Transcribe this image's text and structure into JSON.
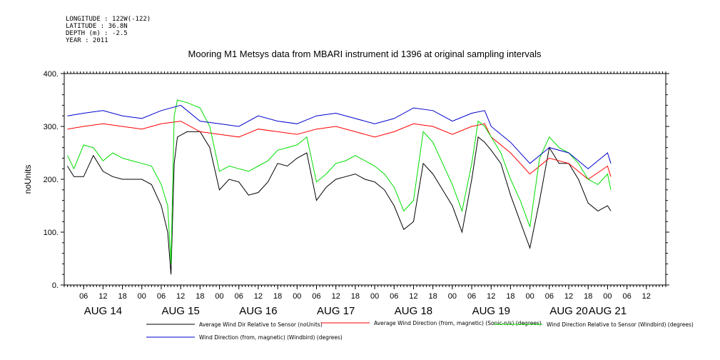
{
  "metadata": {
    "longitude": "LONGITUDE : 122W(-122)",
    "latitude": "LATITUDE : 36.8N",
    "depth": "DEPTH (m) : -2.5",
    "year": "YEAR : 2011"
  },
  "chart_data": {
    "type": "line",
    "title": "Mooring M1 Metsys data from MBARI instrument id 1396 at original sampling intervals",
    "ylabel": "noUnits",
    "xlabel": "",
    "ylim": [
      0,
      400
    ],
    "xlim_hours": [
      0,
      186
    ],
    "yticks": [
      0,
      100,
      200,
      300,
      400
    ],
    "ytick_labels": [
      "0.",
      "100.",
      "200.",
      "300.",
      "400."
    ],
    "hour_ticks": [
      6,
      12,
      18,
      24,
      30,
      36,
      42,
      48,
      54,
      60,
      66,
      72,
      78,
      84,
      90,
      96,
      102,
      108,
      114,
      120,
      126,
      132,
      138,
      144,
      150,
      156,
      162,
      168,
      174,
      180
    ],
    "hour_tick_labels": [
      "06",
      "12",
      "18",
      "00",
      "06",
      "12",
      "18",
      "00",
      "06",
      "12",
      "18",
      "00",
      "06",
      "12",
      "18",
      "00",
      "06",
      "12",
      "18",
      "00",
      "06",
      "12",
      "18",
      "00",
      "06",
      "12",
      "18",
      "00",
      "06",
      "12"
    ],
    "day_labels": [
      {
        "label": "AUG 14",
        "hour": 12
      },
      {
        "label": "AUG 15",
        "hour": 36
      },
      {
        "label": "AUG 16",
        "hour": 60
      },
      {
        "label": "AUG 17",
        "hour": 84
      },
      {
        "label": "AUG 18",
        "hour": 108
      },
      {
        "label": "AUG 19",
        "hour": 132
      },
      {
        "label": "AUG 20",
        "hour": 156
      },
      {
        "label": "AUG 21",
        "hour": 168
      }
    ],
    "series": [
      {
        "name": "Average Wind Dir Relative to Sensor (noUnits)",
        "color": "#000000",
        "x": [
          1,
          3,
          6,
          9,
          12,
          15,
          18,
          21,
          24,
          27,
          30,
          32,
          33,
          34,
          35,
          38,
          42,
          45,
          48,
          51,
          54,
          57,
          60,
          63,
          66,
          69,
          72,
          75,
          78,
          81,
          84,
          87,
          90,
          93,
          96,
          99,
          102,
          105,
          108,
          111,
          114,
          117,
          120,
          123,
          126,
          128,
          130,
          132,
          135,
          138,
          141,
          144,
          147,
          150,
          153,
          156,
          159,
          162,
          165,
          168,
          169
        ],
        "y": [
          225,
          205,
          205,
          245,
          215,
          205,
          200,
          200,
          200,
          190,
          150,
          100,
          20,
          230,
          280,
          290,
          290,
          260,
          180,
          200,
          195,
          170,
          175,
          195,
          230,
          225,
          240,
          250,
          160,
          185,
          200,
          205,
          210,
          200,
          195,
          180,
          150,
          105,
          120,
          230,
          210,
          180,
          150,
          100,
          200,
          280,
          270,
          255,
          230,
          170,
          120,
          70,
          160,
          260,
          230,
          230,
          200,
          155,
          140,
          150,
          140
        ]
      },
      {
        "name": "Average Wind Direction (from, magnetic) (Sonic-n/s) (degrees)",
        "color": "#ff0000",
        "x": [
          1,
          6,
          12,
          18,
          24,
          30,
          36,
          42,
          48,
          54,
          60,
          66,
          72,
          78,
          84,
          90,
          96,
          102,
          108,
          114,
          120,
          126,
          130,
          132,
          138,
          144,
          150,
          156,
          162,
          168,
          169
        ],
        "y": [
          295,
          300,
          305,
          300,
          295,
          305,
          310,
          290,
          285,
          280,
          295,
          290,
          285,
          295,
          300,
          290,
          280,
          290,
          305,
          300,
          285,
          300,
          305,
          280,
          250,
          210,
          240,
          230,
          200,
          225,
          205
        ]
      },
      {
        "name": "Wind Direction Relative to Sensor (Windbird) (degrees)",
        "color": "#00dd00",
        "x": [
          1,
          3,
          6,
          9,
          12,
          15,
          18,
          21,
          24,
          27,
          30,
          32,
          33,
          34,
          35,
          38,
          42,
          45,
          48,
          51,
          54,
          57,
          60,
          63,
          66,
          69,
          72,
          75,
          78,
          81,
          84,
          87,
          90,
          93,
          96,
          99,
          102,
          105,
          108,
          111,
          114,
          117,
          120,
          123,
          126,
          128,
          130,
          132,
          135,
          138,
          141,
          144,
          147,
          150,
          153,
          156,
          159,
          162,
          165,
          168,
          169
        ],
        "y": [
          245,
          220,
          265,
          260,
          235,
          250,
          240,
          235,
          230,
          225,
          190,
          150,
          40,
          320,
          350,
          345,
          335,
          300,
          215,
          225,
          220,
          215,
          225,
          235,
          255,
          260,
          265,
          280,
          195,
          210,
          230,
          235,
          245,
          235,
          225,
          210,
          185,
          140,
          160,
          290,
          270,
          230,
          190,
          140,
          230,
          310,
          300,
          280,
          250,
          200,
          160,
          110,
          240,
          280,
          260,
          250,
          230,
          200,
          190,
          210,
          180
        ]
      },
      {
        "name": "Wind Direction (from, magnetic) (Windbird) (degrees)",
        "color": "#0000cc",
        "x": [
          1,
          6,
          12,
          18,
          24,
          30,
          36,
          42,
          48,
          54,
          60,
          66,
          72,
          78,
          84,
          90,
          96,
          102,
          108,
          114,
          120,
          126,
          130,
          132,
          138,
          144,
          150,
          156,
          162,
          168,
          169
        ],
        "y": [
          320,
          325,
          330,
          320,
          315,
          330,
          340,
          310,
          305,
          300,
          320,
          310,
          305,
          320,
          325,
          315,
          305,
          315,
          335,
          330,
          310,
          325,
          330,
          300,
          270,
          230,
          260,
          250,
          220,
          250,
          230
        ]
      }
    ],
    "legend_position": "bottom"
  }
}
